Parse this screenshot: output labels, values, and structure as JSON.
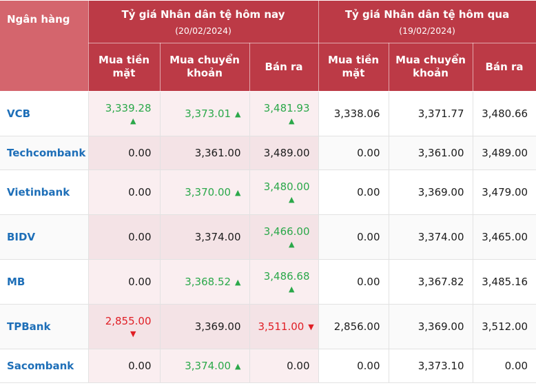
{
  "colors": {
    "header-red": "#BC3A46",
    "header-light-red": "#D4656D",
    "today-bg": "#FAEEF0",
    "today-bg-alt": "#F4E3E6",
    "row-alt-bg": "#FAFAFA",
    "bank-blue": "#1E6FB8",
    "up-green": "#2BA84A",
    "down-red": "#E01E25",
    "text": "#1C1C1C",
    "grid": "#E2E2E2"
  },
  "table": {
    "bank_header": "Ngân hàng",
    "groups": [
      {
        "title": "Tỷ giá Nhân dân tệ hôm nay",
        "date": "(20/02/2024)"
      },
      {
        "title": "Tỷ giá Nhân dân tệ hôm qua",
        "date": "(19/02/2024)"
      }
    ],
    "sub_headers": [
      "Mua tiền mặt",
      "Mua chuyển khoản",
      "Bán ra"
    ],
    "rows": [
      {
        "bank": "VCB",
        "today": [
          {
            "value": "3,339.28",
            "trend": "up",
            "arrow_below": true
          },
          {
            "value": "3,373.01",
            "trend": "up",
            "arrow_below": false
          },
          {
            "value": "3,481.93",
            "trend": "up",
            "arrow_below": true
          }
        ],
        "yesterday": [
          "3,338.06",
          "3,371.77",
          "3,480.66"
        ]
      },
      {
        "bank": "Techcombank",
        "today": [
          {
            "value": "0.00"
          },
          {
            "value": "3,361.00"
          },
          {
            "value": "3,489.00"
          }
        ],
        "yesterday": [
          "0.00",
          "3,361.00",
          "3,489.00"
        ]
      },
      {
        "bank": "Vietinbank",
        "today": [
          {
            "value": "0.00"
          },
          {
            "value": "3,370.00",
            "trend": "up",
            "arrow_below": false
          },
          {
            "value": "3,480.00",
            "trend": "up",
            "arrow_below": true
          }
        ],
        "yesterday": [
          "0.00",
          "3,369.00",
          "3,479.00"
        ]
      },
      {
        "bank": "BIDV",
        "today": [
          {
            "value": "0.00"
          },
          {
            "value": "3,374.00"
          },
          {
            "value": "3,466.00",
            "trend": "up",
            "arrow_below": true
          }
        ],
        "yesterday": [
          "0.00",
          "3,374.00",
          "3,465.00"
        ]
      },
      {
        "bank": "MB",
        "today": [
          {
            "value": "0.00"
          },
          {
            "value": "3,368.52",
            "trend": "up",
            "arrow_below": false
          },
          {
            "value": "3,486.68",
            "trend": "up",
            "arrow_below": true
          }
        ],
        "yesterday": [
          "0.00",
          "3,367.82",
          "3,485.16"
        ]
      },
      {
        "bank": "TPBank",
        "today": [
          {
            "value": "2,855.00",
            "trend": "down",
            "arrow_below": true
          },
          {
            "value": "3,369.00"
          },
          {
            "value": "3,511.00",
            "trend": "down",
            "arrow_below": false
          }
        ],
        "yesterday": [
          "2,856.00",
          "3,369.00",
          "3,512.00"
        ]
      },
      {
        "bank": "Sacombank",
        "today": [
          {
            "value": "0.00"
          },
          {
            "value": "3,374.00",
            "trend": "up",
            "arrow_below": false
          },
          {
            "value": "0.00"
          }
        ],
        "yesterday": [
          "0.00",
          "3,373.10",
          "0.00"
        ]
      }
    ]
  }
}
